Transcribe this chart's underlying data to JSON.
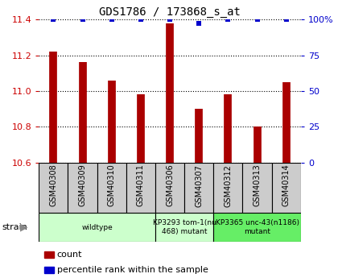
{
  "title": "GDS1786 / 173868_s_at",
  "samples": [
    "GSM40308",
    "GSM40309",
    "GSM40310",
    "GSM40311",
    "GSM40306",
    "GSM40307",
    "GSM40312",
    "GSM40313",
    "GSM40314"
  ],
  "count_values": [
    11.22,
    11.16,
    11.06,
    10.98,
    11.38,
    10.9,
    10.98,
    10.8,
    11.05
  ],
  "percentile_values": [
    100,
    100,
    100,
    100,
    100,
    97,
    100,
    100,
    100
  ],
  "ylim": [
    10.6,
    11.4
  ],
  "yticks_left": [
    10.6,
    10.8,
    11.0,
    11.2,
    11.4
  ],
  "yticks_right": [
    0,
    25,
    50,
    75,
    100
  ],
  "bar_color": "#aa0000",
  "dot_color": "#0000cc",
  "grid_color": "#000000",
  "bg_color": "#ffffff",
  "left_tick_color": "#cc0000",
  "right_tick_color": "#0000cc",
  "sample_box_color": "#cccccc",
  "strain_group1_color": "#ccffcc",
  "strain_group2_color": "#66ee66",
  "strain_groups": [
    {
      "label": "wildtype",
      "start": 0,
      "end": 3,
      "color_key": "strain_group1_color"
    },
    {
      "label": "KP3293 tom-1(nu\n468) mutant",
      "start": 4,
      "end": 5,
      "color_key": "strain_group1_color"
    },
    {
      "label": "KP3365 unc-43(n1186)\nmutant",
      "start": 6,
      "end": 8,
      "color_key": "strain_group2_color"
    }
  ]
}
